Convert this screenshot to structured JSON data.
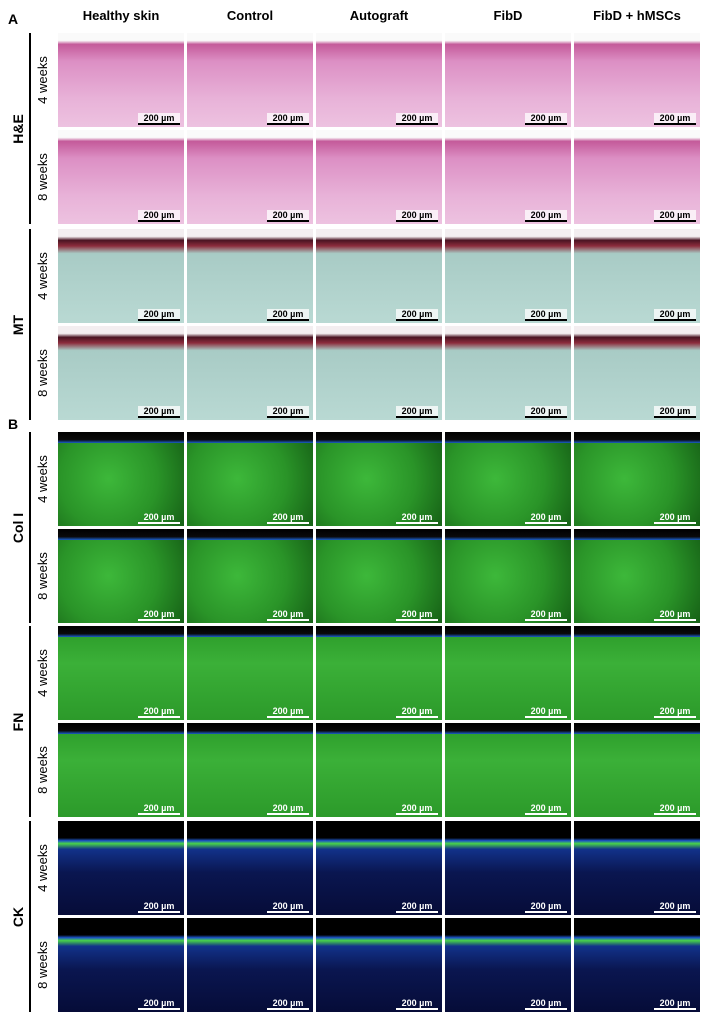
{
  "figure": {
    "panel_labels": [
      "A",
      "B"
    ],
    "columns": [
      "Healthy skin",
      "Control",
      "Autograft",
      "FibD",
      "FibD + hMSCs"
    ],
    "scale_bar": "200 µm",
    "groups": [
      {
        "label": "H&E",
        "rows": [
          "4 weeks",
          "8 weeks"
        ]
      },
      {
        "label": "MT",
        "rows": [
          "4 weeks",
          "8 weeks"
        ]
      },
      {
        "label": "Col I",
        "rows": [
          "4 weeks",
          "8 weeks"
        ]
      },
      {
        "label": "FN",
        "rows": [
          "4 weeks",
          "8 weeks"
        ]
      },
      {
        "label": "CK",
        "rows": [
          "4 weeks",
          "8 weeks"
        ]
      }
    ]
  }
}
